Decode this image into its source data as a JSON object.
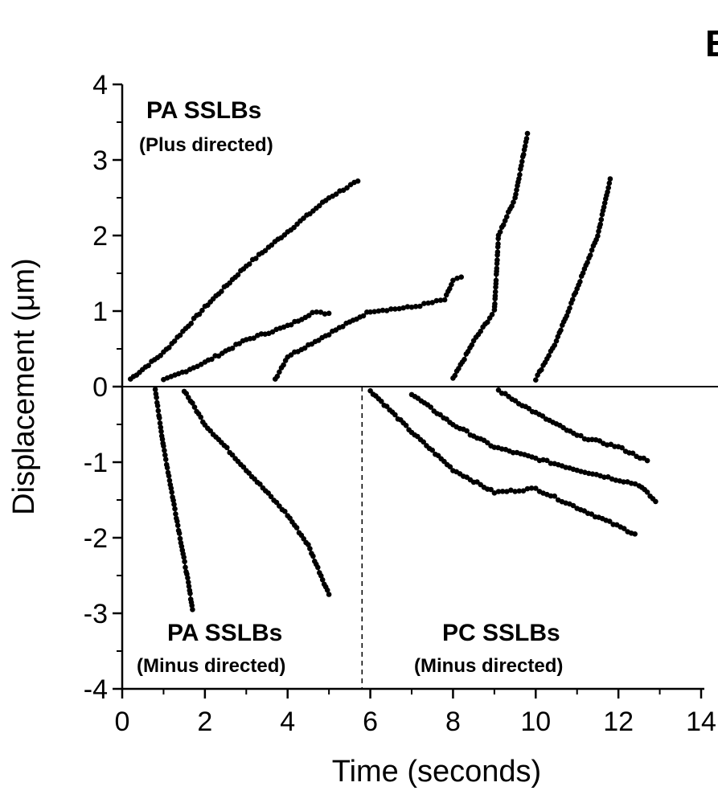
{
  "chart_data": {
    "type": "scatter",
    "panel_label": "B",
    "xlabel": "Time (seconds)",
    "ylabel": "Displacement (μm)",
    "xlim": [
      0,
      14
    ],
    "ylim": [
      -4,
      4
    ],
    "xticks": [
      0,
      2,
      4,
      6,
      8,
      10,
      12,
      14
    ],
    "yticks": [
      -4,
      -3,
      -2,
      -1,
      0,
      1,
      2,
      3,
      4
    ],
    "zero_line": true,
    "divider_x": 5.8,
    "annotations": [
      {
        "text": "PA SSLBs",
        "sub": "(Plus directed)",
        "position": "top-left"
      },
      {
        "text": "PA SSLBs",
        "sub": "(Minus directed)",
        "position": "bottom-left"
      },
      {
        "text": "PC SSLBs",
        "sub": "(Minus directed)",
        "position": "bottom-right"
      }
    ],
    "series": [
      {
        "values": [
          [
            0.2,
            0.1
          ],
          [
            1.0,
            0.45
          ],
          [
            2.0,
            1.05
          ],
          [
            3.0,
            1.6
          ],
          [
            4.0,
            2.05
          ],
          [
            5.0,
            2.5
          ],
          [
            5.7,
            2.72
          ]
        ]
      },
      {
        "values": [
          [
            1.0,
            0.08
          ],
          [
            2.0,
            0.32
          ],
          [
            3.0,
            0.62
          ],
          [
            4.0,
            0.8
          ],
          [
            4.6,
            0.98
          ],
          [
            5.0,
            0.97
          ]
        ]
      },
      {
        "values": [
          [
            3.7,
            0.1
          ],
          [
            4.0,
            0.4
          ],
          [
            5.0,
            0.7
          ],
          [
            6.0,
            1.0
          ],
          [
            7.0,
            1.05
          ],
          [
            7.8,
            1.15
          ],
          [
            8.0,
            1.4
          ],
          [
            8.2,
            1.45
          ]
        ]
      },
      {
        "values": [
          [
            8.0,
            0.1
          ],
          [
            8.5,
            0.6
          ],
          [
            9.0,
            1.0
          ],
          [
            9.1,
            2.0
          ],
          [
            9.5,
            2.5
          ],
          [
            9.8,
            3.35
          ]
        ]
      },
      {
        "values": [
          [
            10.0,
            0.1
          ],
          [
            10.5,
            0.6
          ],
          [
            11.0,
            1.3
          ],
          [
            11.5,
            2.0
          ],
          [
            11.8,
            2.75
          ]
        ]
      },
      {
        "values": [
          [
            0.8,
            -0.05
          ],
          [
            1.0,
            -0.8
          ],
          [
            1.2,
            -1.4
          ],
          [
            1.4,
            -2.0
          ],
          [
            1.6,
            -2.6
          ],
          [
            1.7,
            -2.95
          ]
        ]
      },
      {
        "values": [
          [
            1.5,
            -0.05
          ],
          [
            2.0,
            -0.5
          ],
          [
            3.0,
            -1.1
          ],
          [
            4.0,
            -1.7
          ],
          [
            4.5,
            -2.1
          ],
          [
            5.0,
            -2.75
          ]
        ]
      },
      {
        "values": [
          [
            6.0,
            -0.05
          ],
          [
            7.0,
            -0.6
          ],
          [
            8.0,
            -1.1
          ],
          [
            9.0,
            -1.4
          ],
          [
            10.0,
            -1.35
          ],
          [
            11.0,
            -1.6
          ],
          [
            12.4,
            -1.95
          ]
        ]
      },
      {
        "values": [
          [
            7.0,
            -0.1
          ],
          [
            8.0,
            -0.5
          ],
          [
            9.0,
            -0.8
          ],
          [
            10.0,
            -0.95
          ],
          [
            11.0,
            -1.1
          ],
          [
            12.5,
            -1.3
          ],
          [
            12.9,
            -1.52
          ]
        ]
      },
      {
        "values": [
          [
            9.1,
            -0.05
          ],
          [
            10.0,
            -0.35
          ],
          [
            11.0,
            -0.65
          ],
          [
            12.0,
            -0.8
          ],
          [
            12.7,
            -0.98
          ]
        ]
      }
    ]
  }
}
